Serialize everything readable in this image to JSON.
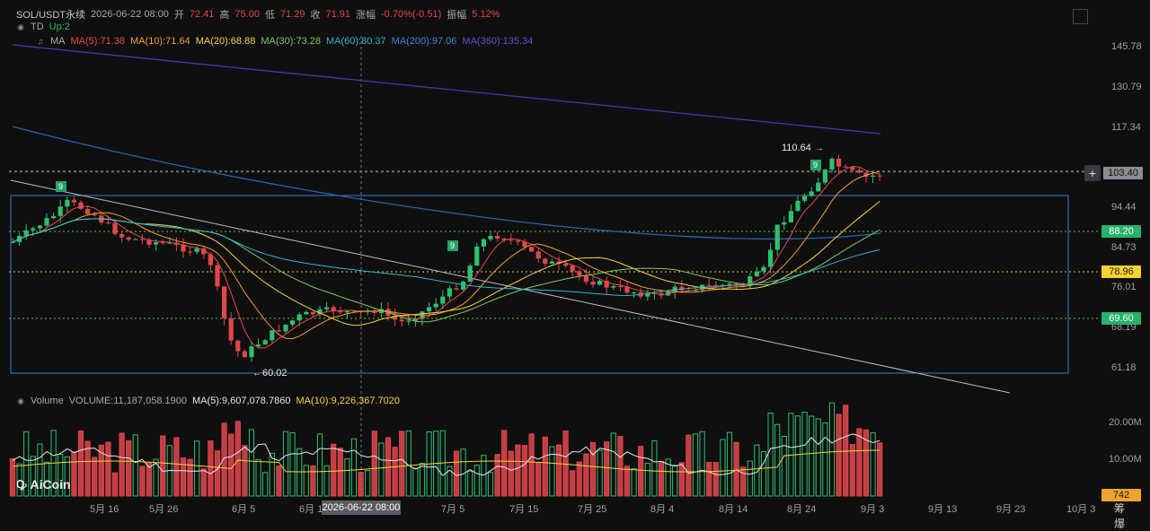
{
  "header": {
    "symbol": "SOL/USDT永续",
    "datetime": "2026-06-22 08:00",
    "open_label": "开",
    "open": "72.41",
    "high_label": "高",
    "high": "75.00",
    "low_label": "低",
    "low": "71.29",
    "close_label": "收",
    "close": "71.91",
    "change_label": "涨幅",
    "change": "-0.70%(-0.51)",
    "amp_label": "振幅",
    "amp": "5.12%"
  },
  "td": {
    "label": "TD",
    "value": "Up:2"
  },
  "ma": {
    "label": "MA",
    "ma5": "MA(5):71.38",
    "ma10": "MA(10):71.64",
    "ma20": "MA(20):68.88",
    "ma30": "MA(30):73.28",
    "ma60": "MA(60):80.37",
    "ma200": "MA(200):97.06",
    "ma360": "MA(360):135.34"
  },
  "volume": {
    "label": "Volume",
    "value": "VOLUME:11,187,058.1900",
    "ma5": "MA(5):9,607,078.7860",
    "ma10": "MA(10):9,226,367.7020"
  },
  "price_axis": {
    "ticks": [
      "145.78",
      "130.79",
      "117.34",
      "94.44",
      "84.73",
      "76.01",
      "68.19",
      "61.18"
    ],
    "current": "103.40",
    "level_high": "88.20",
    "level_mid": "78.96",
    "level_low": "69.60"
  },
  "volume_axis": {
    "ticks": [
      "20.00M",
      "10.00M"
    ],
    "current": "742"
  },
  "time_axis": {
    "ticks": [
      "5月 16",
      "5月 26",
      "6月 5",
      "6月 1",
      "7月 5",
      "7月 15",
      "7月 25",
      "8月 4",
      "8月 14",
      "8月 24",
      "9月 3",
      "9月 13",
      "9月 23",
      "10月 3"
    ],
    "crosshair": "2026-06-22 08:00"
  },
  "annotations": {
    "high": "110.64",
    "low": "60.02",
    "td_marks": [
      "9",
      "9",
      "9"
    ]
  },
  "branding": {
    "logo": "AiCoin"
  },
  "side_chars": "筹 爆",
  "colors": {
    "up": "#2fbf71",
    "down": "#e0474c",
    "background": "#0f0f10"
  }
}
